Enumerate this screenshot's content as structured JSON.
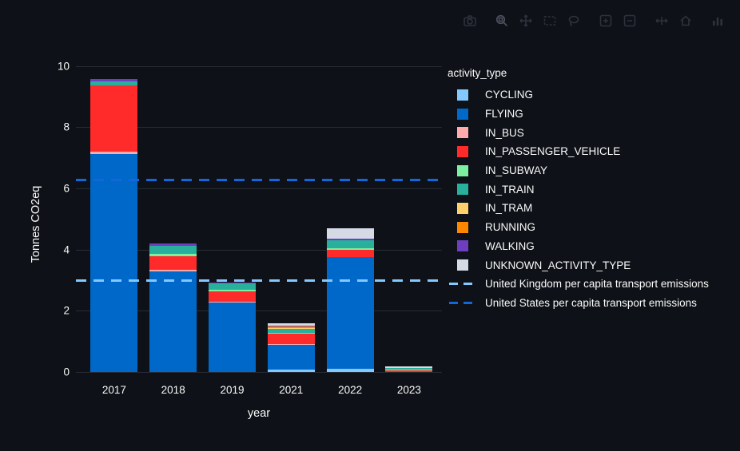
{
  "colors": {
    "background": "#0e1117",
    "text": "#fafafa",
    "grid": "#272b33"
  },
  "modebar": {
    "icons": [
      "download-plot-icon",
      "zoom-icon",
      "pan-icon",
      "box-select-icon",
      "lasso-select-icon",
      "zoom-in-icon",
      "zoom-out-icon",
      "autoscale-icon",
      "reset-axes-icon",
      "plotly-logo-icon"
    ],
    "groups": [
      [
        "download-plot-icon"
      ],
      [
        "zoom-icon",
        "pan-icon",
        "box-select-icon",
        "lasso-select-icon"
      ],
      [
        "zoom-in-icon",
        "zoom-out-icon"
      ],
      [
        "autoscale-icon",
        "reset-axes-icon"
      ],
      [
        "plotly-logo-icon"
      ]
    ],
    "active_icon": "zoom-icon"
  },
  "chart_data": {
    "type": "bar",
    "stacked": true,
    "title": "",
    "xlabel": "year",
    "ylabel": "Tonnes CO2eq",
    "ylim": [
      0,
      10
    ],
    "yticks": [
      0,
      2,
      4,
      6,
      8,
      10
    ],
    "grid": true,
    "legend_position": "right",
    "legend_title": "activity_type",
    "categories": [
      "2017",
      "2018",
      "2019",
      "2021",
      "2022",
      "2023"
    ],
    "series": [
      {
        "name": "CYCLING",
        "color": "#83c9ff",
        "values": [
          0,
          0,
          0,
          0.08,
          0.1,
          0
        ]
      },
      {
        "name": "FLYING",
        "color": "#0068c9",
        "values": [
          7.13,
          3.28,
          2.27,
          0.8,
          3.66,
          0
        ]
      },
      {
        "name": "IN_BUS",
        "color": "#ffabab",
        "values": [
          0.06,
          0.05,
          0.03,
          0.02,
          0,
          0
        ]
      },
      {
        "name": "IN_PASSENGER_VEHICLE",
        "color": "#ff2b2b",
        "values": [
          2.16,
          0.45,
          0.33,
          0.35,
          0.23,
          0.05
        ]
      },
      {
        "name": "IN_SUBWAY",
        "color": "#7defa1",
        "values": [
          0,
          0.07,
          0.06,
          0.03,
          0.04,
          0.03
        ]
      },
      {
        "name": "IN_TRAIN",
        "color": "#29b09d",
        "values": [
          0.15,
          0.28,
          0.2,
          0.13,
          0.26,
          0.05
        ]
      },
      {
        "name": "IN_TRAM",
        "color": "#ffd16a",
        "values": [
          0,
          0,
          0,
          0.03,
          0,
          0
        ]
      },
      {
        "name": "RUNNING",
        "color": "#ff8700",
        "values": [
          0,
          0,
          0,
          0.04,
          0,
          0
        ]
      },
      {
        "name": "WALKING",
        "color": "#6d3fc0",
        "values": [
          0.08,
          0.07,
          0.04,
          0.02,
          0.06,
          0
        ]
      },
      {
        "name": "UNKNOWN_ACTIVITY_TYPE",
        "color": "#d5dae5",
        "values": [
          0,
          0,
          0,
          0.09,
          0.35,
          0.06
        ]
      }
    ],
    "reference_lines": [
      {
        "name": "United Kingdom per capita transport emissions",
        "value": 2.98,
        "color": "#83c9ff",
        "style": "dashed"
      },
      {
        "name": "United States per capita transport emissions",
        "value": 6.27,
        "color": "#1467d8",
        "style": "dashed"
      }
    ]
  }
}
